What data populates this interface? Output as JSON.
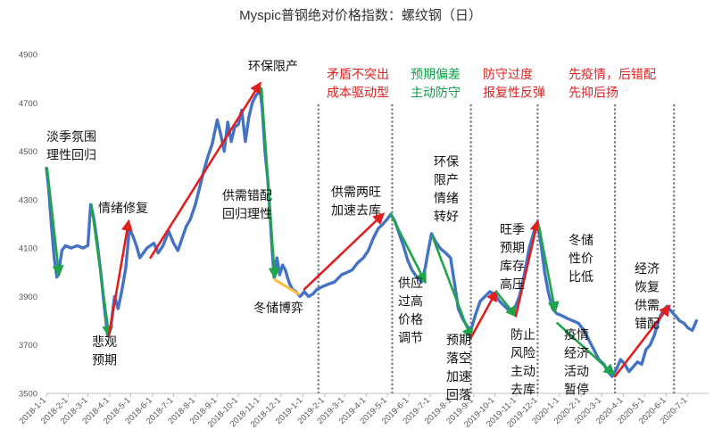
{
  "chart_data": {
    "type": "line",
    "title": "Myspic普钢绝对价格指数：螺纹钢（日）",
    "ylim": [
      3500,
      4900
    ],
    "y_ticks": [
      3500,
      3700,
      3900,
      4100,
      4300,
      4500,
      4700,
      4900
    ],
    "x_ticks": [
      "2018-1-1",
      "2018-2-1",
      "2018-3-1",
      "2018-4-1",
      "2018-5-1",
      "2018-6-1",
      "2018-7-1",
      "2018-8-1",
      "2018-9-1",
      "2018-10-1",
      "2018-11-1",
      "2018-12-1",
      "2019-1-1",
      "2019-2-1",
      "2019-3-1",
      "2019-4-1",
      "2019-5-1",
      "2019-6-1",
      "2019-7-1",
      "2019-8-1",
      "2019-9-1",
      "2019-10-1",
      "2019-11-1",
      "2019-12-1",
      "2020-1-1",
      "2020-2-1",
      "2020-3-1",
      "2020-4-1",
      "2020-5-1",
      "2020-6-1",
      "2020-7-1"
    ],
    "grid": false,
    "colors": {
      "line": "#4472C4",
      "up": "#E02020",
      "down": "#1EA54A",
      "sideways": "#F5C242",
      "divider": "#777777",
      "red_text": "#E02020",
      "green_text": "#12A04A",
      "black_text": "#111111"
    },
    "series": [
      {
        "points": [
          {
            "x": "2018-1-1",
            "y": 4430
          },
          {
            "x": "2018-1-4",
            "y": 4350
          },
          {
            "x": "2018-1-8",
            "y": 4200
          },
          {
            "x": "2018-1-12",
            "y": 4060
          },
          {
            "x": "2018-1-16",
            "y": 3980
          },
          {
            "x": "2018-1-19",
            "y": 4010
          },
          {
            "x": "2018-1-23",
            "y": 4090
          },
          {
            "x": "2018-1-28",
            "y": 4110
          },
          {
            "x": "2018-2-5",
            "y": 4100
          },
          {
            "x": "2018-2-14",
            "y": 4110
          },
          {
            "x": "2018-2-22",
            "y": 4100
          },
          {
            "x": "2018-3-1",
            "y": 4110
          },
          {
            "x": "2018-3-5",
            "y": 4280
          },
          {
            "x": "2018-3-9",
            "y": 4230
          },
          {
            "x": "2018-3-14",
            "y": 4130
          },
          {
            "x": "2018-3-19",
            "y": 4010
          },
          {
            "x": "2018-3-24",
            "y": 3870
          },
          {
            "x": "2018-3-29",
            "y": 3740
          },
          {
            "x": "2018-4-3",
            "y": 3780
          },
          {
            "x": "2018-4-8",
            "y": 3900
          },
          {
            "x": "2018-4-13",
            "y": 3850
          },
          {
            "x": "2018-4-18",
            "y": 3920
          },
          {
            "x": "2018-4-24",
            "y": 4020
          },
          {
            "x": "2018-4-29",
            "y": 4180
          },
          {
            "x": "2018-5-4",
            "y": 4150
          },
          {
            "x": "2018-5-9",
            "y": 4110
          },
          {
            "x": "2018-5-14",
            "y": 4060
          },
          {
            "x": "2018-5-19",
            "y": 4080
          },
          {
            "x": "2018-5-24",
            "y": 4100
          },
          {
            "x": "2018-5-29",
            "y": 4110
          },
          {
            "x": "2018-6-3",
            "y": 4120
          },
          {
            "x": "2018-6-9",
            "y": 4080
          },
          {
            "x": "2018-6-16",
            "y": 4110
          },
          {
            "x": "2018-6-24",
            "y": 4170
          },
          {
            "x": "2018-7-1",
            "y": 4120
          },
          {
            "x": "2018-7-7",
            "y": 4090
          },
          {
            "x": "2018-7-13",
            "y": 4140
          },
          {
            "x": "2018-7-19",
            "y": 4190
          },
          {
            "x": "2018-7-25",
            "y": 4220
          },
          {
            "x": "2018-8-1",
            "y": 4280
          },
          {
            "x": "2018-8-7",
            "y": 4350
          },
          {
            "x": "2018-8-13",
            "y": 4420
          },
          {
            "x": "2018-8-19",
            "y": 4480
          },
          {
            "x": "2018-8-25",
            "y": 4530
          },
          {
            "x": "2018-9-1",
            "y": 4630
          },
          {
            "x": "2018-9-6",
            "y": 4570
          },
          {
            "x": "2018-9-11",
            "y": 4500
          },
          {
            "x": "2018-9-16",
            "y": 4620
          },
          {
            "x": "2018-9-21",
            "y": 4540
          },
          {
            "x": "2018-9-26",
            "y": 4600
          },
          {
            "x": "2018-10-1",
            "y": 4610
          },
          {
            "x": "2018-10-6",
            "y": 4670
          },
          {
            "x": "2018-10-11",
            "y": 4540
          },
          {
            "x": "2018-10-16",
            "y": 4640
          },
          {
            "x": "2018-10-21",
            "y": 4700
          },
          {
            "x": "2018-10-26",
            "y": 4730
          },
          {
            "x": "2018-11-1",
            "y": 4750
          },
          {
            "x": "2018-11-4",
            "y": 4680
          },
          {
            "x": "2018-11-8",
            "y": 4500
          },
          {
            "x": "2018-11-12",
            "y": 4380
          },
          {
            "x": "2018-11-15",
            "y": 4250
          },
          {
            "x": "2018-11-18",
            "y": 4100
          },
          {
            "x": "2018-11-21",
            "y": 3980
          },
          {
            "x": "2018-11-25",
            "y": 4060
          },
          {
            "x": "2018-11-29",
            "y": 3990
          },
          {
            "x": "2018-12-3",
            "y": 4030
          },
          {
            "x": "2018-12-7",
            "y": 4010
          },
          {
            "x": "2018-12-12",
            "y": 3960
          },
          {
            "x": "2018-12-17",
            "y": 3930
          },
          {
            "x": "2018-12-22",
            "y": 3920
          },
          {
            "x": "2018-12-28",
            "y": 3900
          },
          {
            "x": "2019-1-3",
            "y": 3920
          },
          {
            "x": "2019-1-9",
            "y": 3900
          },
          {
            "x": "2019-1-15",
            "y": 3910
          },
          {
            "x": "2019-1-21",
            "y": 3930
          },
          {
            "x": "2019-1-28",
            "y": 3940
          },
          {
            "x": "2019-2-5",
            "y": 3950
          },
          {
            "x": "2019-2-15",
            "y": 3960
          },
          {
            "x": "2019-2-25",
            "y": 3990
          },
          {
            "x": "2019-3-5",
            "y": 4000
          },
          {
            "x": "2019-3-12",
            "y": 4010
          },
          {
            "x": "2019-3-20",
            "y": 4040
          },
          {
            "x": "2019-3-28",
            "y": 4060
          },
          {
            "x": "2019-4-4",
            "y": 4090
          },
          {
            "x": "2019-4-11",
            "y": 4140
          },
          {
            "x": "2019-4-18",
            "y": 4180
          },
          {
            "x": "2019-4-25",
            "y": 4200
          },
          {
            "x": "2019-5-1",
            "y": 4220
          },
          {
            "x": "2019-5-6",
            "y": 4240
          },
          {
            "x": "2019-5-12",
            "y": 4210
          },
          {
            "x": "2019-5-18",
            "y": 4160
          },
          {
            "x": "2019-5-24",
            "y": 4110
          },
          {
            "x": "2019-5-30",
            "y": 4050
          },
          {
            "x": "2019-6-5",
            "y": 4010
          },
          {
            "x": "2019-6-12",
            "y": 3980
          },
          {
            "x": "2019-6-19",
            "y": 3960
          },
          {
            "x": "2019-6-24",
            "y": 4020
          },
          {
            "x": "2019-6-29",
            "y": 4100
          },
          {
            "x": "2019-7-3",
            "y": 4160
          },
          {
            "x": "2019-7-8",
            "y": 4130
          },
          {
            "x": "2019-7-15",
            "y": 4100
          },
          {
            "x": "2019-7-23",
            "y": 4080
          },
          {
            "x": "2019-7-30",
            "y": 4060
          },
          {
            "x": "2019-8-5",
            "y": 3950
          },
          {
            "x": "2019-8-10",
            "y": 3850
          },
          {
            "x": "2019-8-16",
            "y": 3810
          },
          {
            "x": "2019-8-22",
            "y": 3780
          },
          {
            "x": "2019-8-28",
            "y": 3760
          },
          {
            "x": "2019-9-3",
            "y": 3820
          },
          {
            "x": "2019-9-10",
            "y": 3880
          },
          {
            "x": "2019-9-17",
            "y": 3900
          },
          {
            "x": "2019-9-24",
            "y": 3920
          },
          {
            "x": "2019-10-1",
            "y": 3910
          },
          {
            "x": "2019-10-8",
            "y": 3880
          },
          {
            "x": "2019-10-15",
            "y": 3860
          },
          {
            "x": "2019-10-22",
            "y": 3840
          },
          {
            "x": "2019-10-29",
            "y": 3850
          },
          {
            "x": "2019-11-5",
            "y": 3900
          },
          {
            "x": "2019-11-12",
            "y": 3990
          },
          {
            "x": "2019-11-19",
            "y": 4100
          },
          {
            "x": "2019-11-26",
            "y": 4170
          },
          {
            "x": "2019-12-1",
            "y": 4200
          },
          {
            "x": "2019-12-6",
            "y": 4110
          },
          {
            "x": "2019-12-11",
            "y": 4000
          },
          {
            "x": "2019-12-16",
            "y": 3920
          },
          {
            "x": "2019-12-22",
            "y": 3850
          },
          {
            "x": "2019-12-28",
            "y": 3830
          },
          {
            "x": "2020-1-5",
            "y": 3820
          },
          {
            "x": "2020-1-12",
            "y": 3810
          },
          {
            "x": "2020-1-20",
            "y": 3800
          },
          {
            "x": "2020-1-28",
            "y": 3790
          },
          {
            "x": "2020-2-5",
            "y": 3760
          },
          {
            "x": "2020-2-12",
            "y": 3720
          },
          {
            "x": "2020-2-19",
            "y": 3680
          },
          {
            "x": "2020-2-26",
            "y": 3640
          },
          {
            "x": "2020-3-4",
            "y": 3620
          },
          {
            "x": "2020-3-10",
            "y": 3590
          },
          {
            "x": "2020-3-16",
            "y": 3570
          },
          {
            "x": "2020-3-22",
            "y": 3600
          },
          {
            "x": "2020-3-28",
            "y": 3640
          },
          {
            "x": "2020-4-3",
            "y": 3620
          },
          {
            "x": "2020-4-9",
            "y": 3590
          },
          {
            "x": "2020-4-15",
            "y": 3610
          },
          {
            "x": "2020-4-21",
            "y": 3630
          },
          {
            "x": "2020-4-27",
            "y": 3620
          },
          {
            "x": "2020-5-3",
            "y": 3680
          },
          {
            "x": "2020-5-9",
            "y": 3700
          },
          {
            "x": "2020-5-15",
            "y": 3740
          },
          {
            "x": "2020-5-21",
            "y": 3800
          },
          {
            "x": "2020-5-27",
            "y": 3840
          },
          {
            "x": "2020-6-2",
            "y": 3860
          },
          {
            "x": "2020-6-8",
            "y": 3840
          },
          {
            "x": "2020-6-14",
            "y": 3820
          },
          {
            "x": "2020-6-20",
            "y": 3800
          },
          {
            "x": "2020-6-26",
            "y": 3790
          },
          {
            "x": "2020-7-2",
            "y": 3770
          },
          {
            "x": "2020-7-8",
            "y": 3760
          },
          {
            "x": "2020-7-14",
            "y": 3800
          }
        ]
      }
    ],
    "dividers": [
      "2019-1-23",
      "2019-5-8",
      "2019-8-28",
      "2019-12-1",
      "2020-3-20",
      "2020-6-12"
    ],
    "arrows": [
      {
        "kind": "down",
        "from": {
          "x": "2018-1-2",
          "y": 4430
        },
        "to": {
          "x": "2018-1-19",
          "y": 3990
        }
      },
      {
        "kind": "down",
        "from": {
          "x": "2018-3-6",
          "y": 4280
        },
        "to": {
          "x": "2018-3-31",
          "y": 3740
        }
      },
      {
        "kind": "up",
        "from": {
          "x": "2018-3-31",
          "y": 3740
        },
        "to": {
          "x": "2018-4-28",
          "y": 4210
        }
      },
      {
        "kind": "up",
        "from": {
          "x": "2018-5-29",
          "y": 4060
        },
        "to": {
          "x": "2018-11-1",
          "y": 4780
        }
      },
      {
        "kind": "down",
        "from": {
          "x": "2018-11-3",
          "y": 4760
        },
        "to": {
          "x": "2018-11-22",
          "y": 3980
        }
      },
      {
        "kind": "sideways",
        "from": {
          "x": "2018-11-22",
          "y": 3970
        },
        "to": {
          "x": "2018-12-26",
          "y": 3910
        }
      },
      {
        "kind": "up",
        "from": {
          "x": "2019-1-3",
          "y": 3930
        },
        "to": {
          "x": "2019-4-25",
          "y": 4240
        }
      },
      {
        "kind": "down",
        "from": {
          "x": "2019-5-6",
          "y": 4240
        },
        "to": {
          "x": "2019-6-24",
          "y": 3960
        }
      },
      {
        "kind": "down",
        "from": {
          "x": "2019-7-4",
          "y": 4150
        },
        "to": {
          "x": "2019-8-28",
          "y": 3730
        }
      },
      {
        "kind": "up",
        "from": {
          "x": "2019-8-28",
          "y": 3730
        },
        "to": {
          "x": "2019-10-3",
          "y": 3920
        }
      },
      {
        "kind": "down",
        "from": {
          "x": "2019-10-3",
          "y": 3920
        },
        "to": {
          "x": "2019-10-31",
          "y": 3820
        }
      },
      {
        "kind": "up",
        "from": {
          "x": "2019-10-31",
          "y": 3820
        },
        "to": {
          "x": "2019-12-1",
          "y": 4210
        }
      },
      {
        "kind": "down",
        "from": {
          "x": "2019-12-3",
          "y": 4190
        },
        "to": {
          "x": "2019-12-26",
          "y": 3840
        }
      },
      {
        "kind": "down",
        "from": {
          "x": "2019-12-29",
          "y": 3790
        },
        "to": {
          "x": "2020-3-18",
          "y": 3580
        }
      },
      {
        "kind": "up",
        "from": {
          "x": "2020-3-20",
          "y": 3570
        },
        "to": {
          "x": "2020-6-5",
          "y": 3860
        }
      }
    ],
    "annotations": [
      {
        "color": "black",
        "lines": [
          "淡季氛围",
          "理性回归"
        ]
      },
      {
        "color": "black",
        "lines": [
          "悲观",
          "预期"
        ]
      },
      {
        "color": "black",
        "lines": [
          "情绪修复"
        ]
      },
      {
        "color": "black",
        "lines": [
          "环保限产"
        ]
      },
      {
        "color": "black",
        "lines": [
          "供需错配",
          "回归理性"
        ]
      },
      {
        "color": "black",
        "lines": [
          "冬储博弈"
        ]
      },
      {
        "color": "red",
        "lines": [
          "矛盾不突出",
          "成本驱动型"
        ]
      },
      {
        "color": "black",
        "lines": [
          "供需两旺",
          "加速去库"
        ]
      },
      {
        "color": "green",
        "lines": [
          "预期偏差",
          "主动防守"
        ]
      },
      {
        "color": "black",
        "lines": [
          "环保",
          "限产",
          "情绪",
          "转好"
        ]
      },
      {
        "color": "black",
        "lines": [
          "供应",
          "过高",
          "价格",
          "调节"
        ]
      },
      {
        "color": "black",
        "lines": [
          "预期",
          "落空",
          "加速",
          "回落"
        ]
      },
      {
        "color": "red",
        "lines": [
          "防守过度",
          "报复性反弹"
        ]
      },
      {
        "color": "black",
        "lines": [
          "旺季",
          "预期",
          "库存",
          "高压"
        ]
      },
      {
        "color": "black",
        "lines": [
          "防止",
          "风险",
          "主动",
          "去库"
        ]
      },
      {
        "color": "red",
        "lines": [
          "先疫情，后错配",
          "先抑后扬"
        ]
      },
      {
        "color": "black",
        "lines": [
          "冬储",
          "性价",
          "比低"
        ]
      },
      {
        "color": "black",
        "lines": [
          "疫情",
          "经济",
          "活动",
          "暂停"
        ]
      },
      {
        "color": "black",
        "lines": [
          "经济",
          "恢复",
          "供需",
          "错配"
        ]
      }
    ]
  }
}
